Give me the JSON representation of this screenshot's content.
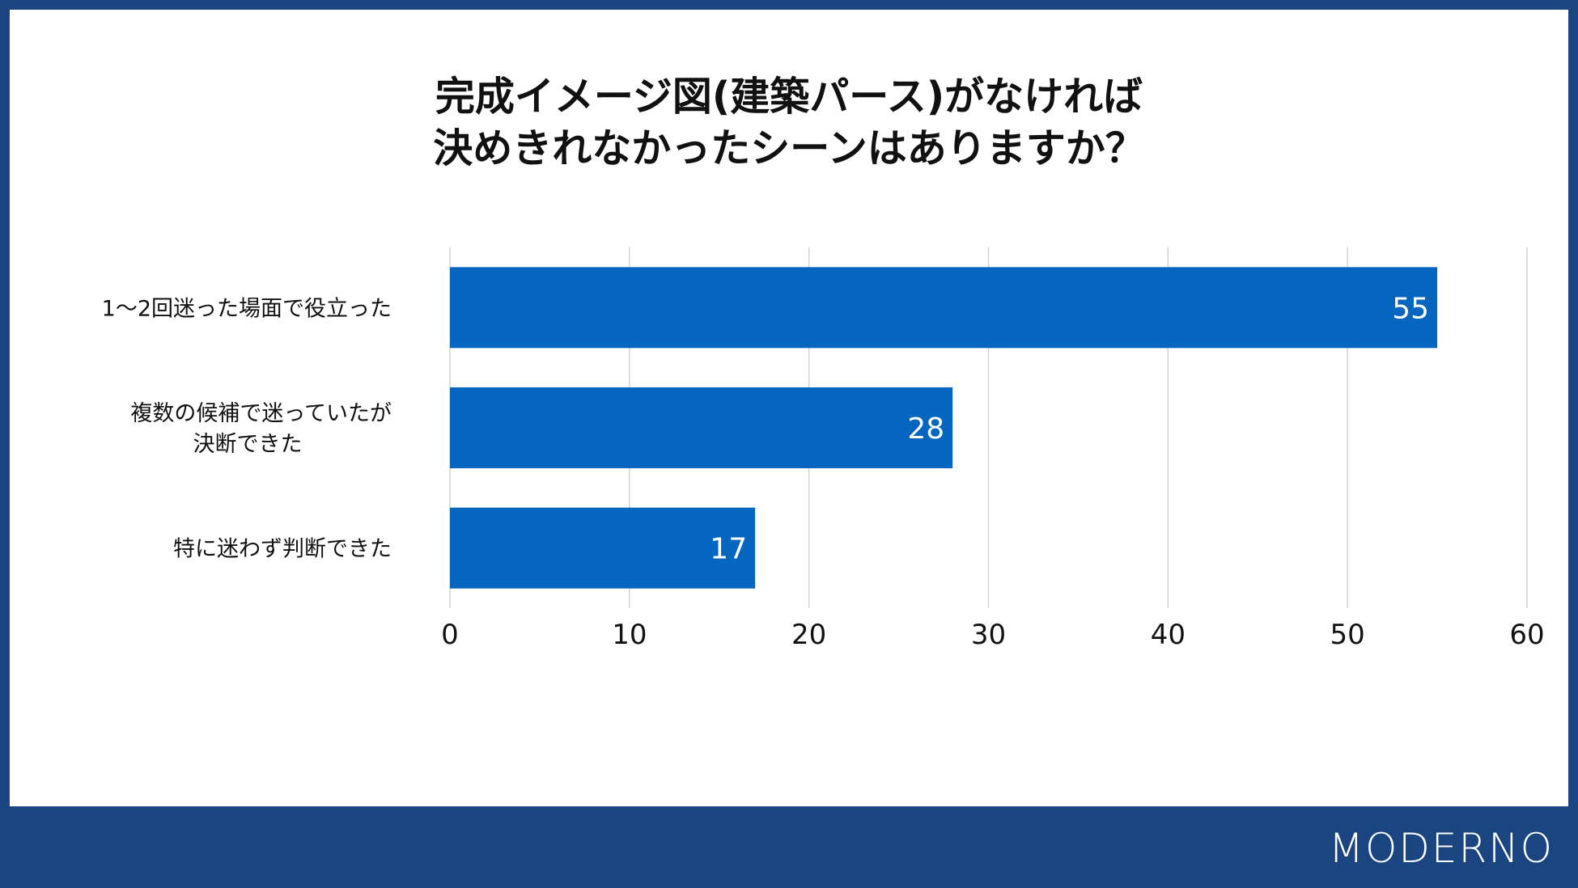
{
  "title_lines": [
    "完成イメージ図(建築パース)がなければ",
    "決めきれなかったシーンはありますか？"
  ],
  "brand": "MODERNO",
  "colors": {
    "frame": "#1a4580",
    "bar": "#0466be",
    "grid": "#d3d3d3",
    "text": "#111111"
  },
  "chart_data": {
    "type": "bar",
    "orientation": "horizontal",
    "categories": [
      [
        "1〜2回迷った場面で役立った"
      ],
      [
        "複数の候補で迷っていたが",
        "決断できた"
      ],
      [
        "特に迷わず判断できた"
      ]
    ],
    "values": [
      55,
      28,
      17
    ],
    "xlim": [
      0,
      60
    ],
    "xticks": [
      0,
      10,
      20,
      30,
      40,
      50,
      60
    ],
    "grid": true,
    "data_labels": true
  }
}
